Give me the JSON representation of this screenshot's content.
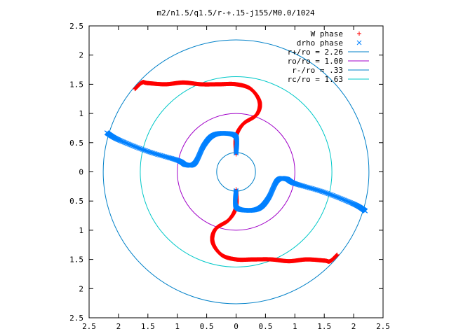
{
  "chart_data": {
    "type": "scatter",
    "title": "m2/n1.5/q1.5/r-+.15-j155/M0.0/1024",
    "xlabel": "",
    "ylabel": "",
    "xlim": [
      -2.5,
      2.5
    ],
    "ylim": [
      -2.5,
      2.5
    ],
    "xtick_values": [
      -2.5,
      -2,
      -1.5,
      -1,
      -0.5,
      0,
      0.5,
      1,
      1.5,
      2,
      2.5
    ],
    "xtick_labels": [
      "2.5",
      "2",
      "1.5",
      "1",
      "0.5",
      "0",
      "0.5",
      "1",
      "1.5",
      "2",
      "2.5"
    ],
    "ytick_values": [
      2.5,
      2,
      1.5,
      1,
      0.5,
      0,
      -0.5,
      -1,
      -1.5,
      -2,
      -2.5
    ],
    "ytick_labels": [
      "2.5",
      "2",
      "1.5",
      "1",
      "0.5",
      "0",
      "0.5",
      "1",
      "1.5",
      "2",
      "2.5"
    ],
    "grid": false,
    "legend_position": "top-right",
    "series": [
      {
        "name": "W phase",
        "marker": "plus",
        "color": "#ff0000",
        "path": [
          [
            0.3,
            -1.5
          ],
          [
            0.6,
            -1.5
          ],
          [
            0.9,
            -1.53
          ],
          [
            1.2,
            -1.5
          ],
          [
            1.5,
            -1.52
          ],
          [
            1.6,
            -1.53
          ],
          [
            1.72,
            -1.42
          ]
        ],
        "path_mirrored": true,
        "mirror_points": [
          [
            0.0,
            -0.3
          ],
          [
            0.0,
            -0.6
          ],
          [
            -0.12,
            -0.82
          ],
          [
            -0.35,
            -0.98
          ],
          [
            -0.4,
            -1.2
          ],
          [
            -0.25,
            -1.42
          ],
          [
            0.0,
            -1.5
          ],
          [
            0.3,
            -1.5
          ]
        ]
      },
      {
        "name": "drho phase",
        "marker": "x",
        "color": "#0080ff",
        "path": [
          [
            -2.2,
            0.67
          ],
          [
            -2.0,
            0.55
          ],
          [
            -1.5,
            0.35
          ],
          [
            -1.0,
            0.2
          ],
          [
            -0.85,
            0.12
          ],
          [
            -0.7,
            0.15
          ],
          [
            -0.55,
            0.45
          ],
          [
            -0.4,
            0.62
          ],
          [
            -0.2,
            0.66
          ],
          [
            0.0,
            0.6
          ],
          [
            0.0,
            0.32
          ]
        ],
        "path_mirrored": true
      },
      {
        "name": "r+/ro = 2.26",
        "type": "circle",
        "radius": 2.26,
        "color": "#0080c8"
      },
      {
        "name": "ro/ro = 1.00",
        "type": "circle",
        "radius": 1.0,
        "color": "#a000c8"
      },
      {
        "name": "r-/ro = .33",
        "type": "circle",
        "radius": 0.33,
        "color": "#0080c8"
      },
      {
        "name": "rc/ro = 1.63",
        "type": "circle",
        "radius": 1.63,
        "color": "#00c8c8"
      }
    ],
    "legend": [
      {
        "label": "W phase",
        "marker": "plus",
        "color": "#ff0000"
      },
      {
        "label": "drho phase",
        "marker": "x",
        "color": "#0080ff"
      },
      {
        "label": "r+/ro = 2.26",
        "marker": "line",
        "color": "#0080c8"
      },
      {
        "label": "ro/ro = 1.00",
        "marker": "line",
        "color": "#a000c8"
      },
      {
        "label": "r-/ro = .33",
        "marker": "line",
        "color": "#0080c8"
      },
      {
        "label": "rc/ro = 1.63",
        "marker": "line",
        "color": "#00c8c8"
      }
    ]
  }
}
